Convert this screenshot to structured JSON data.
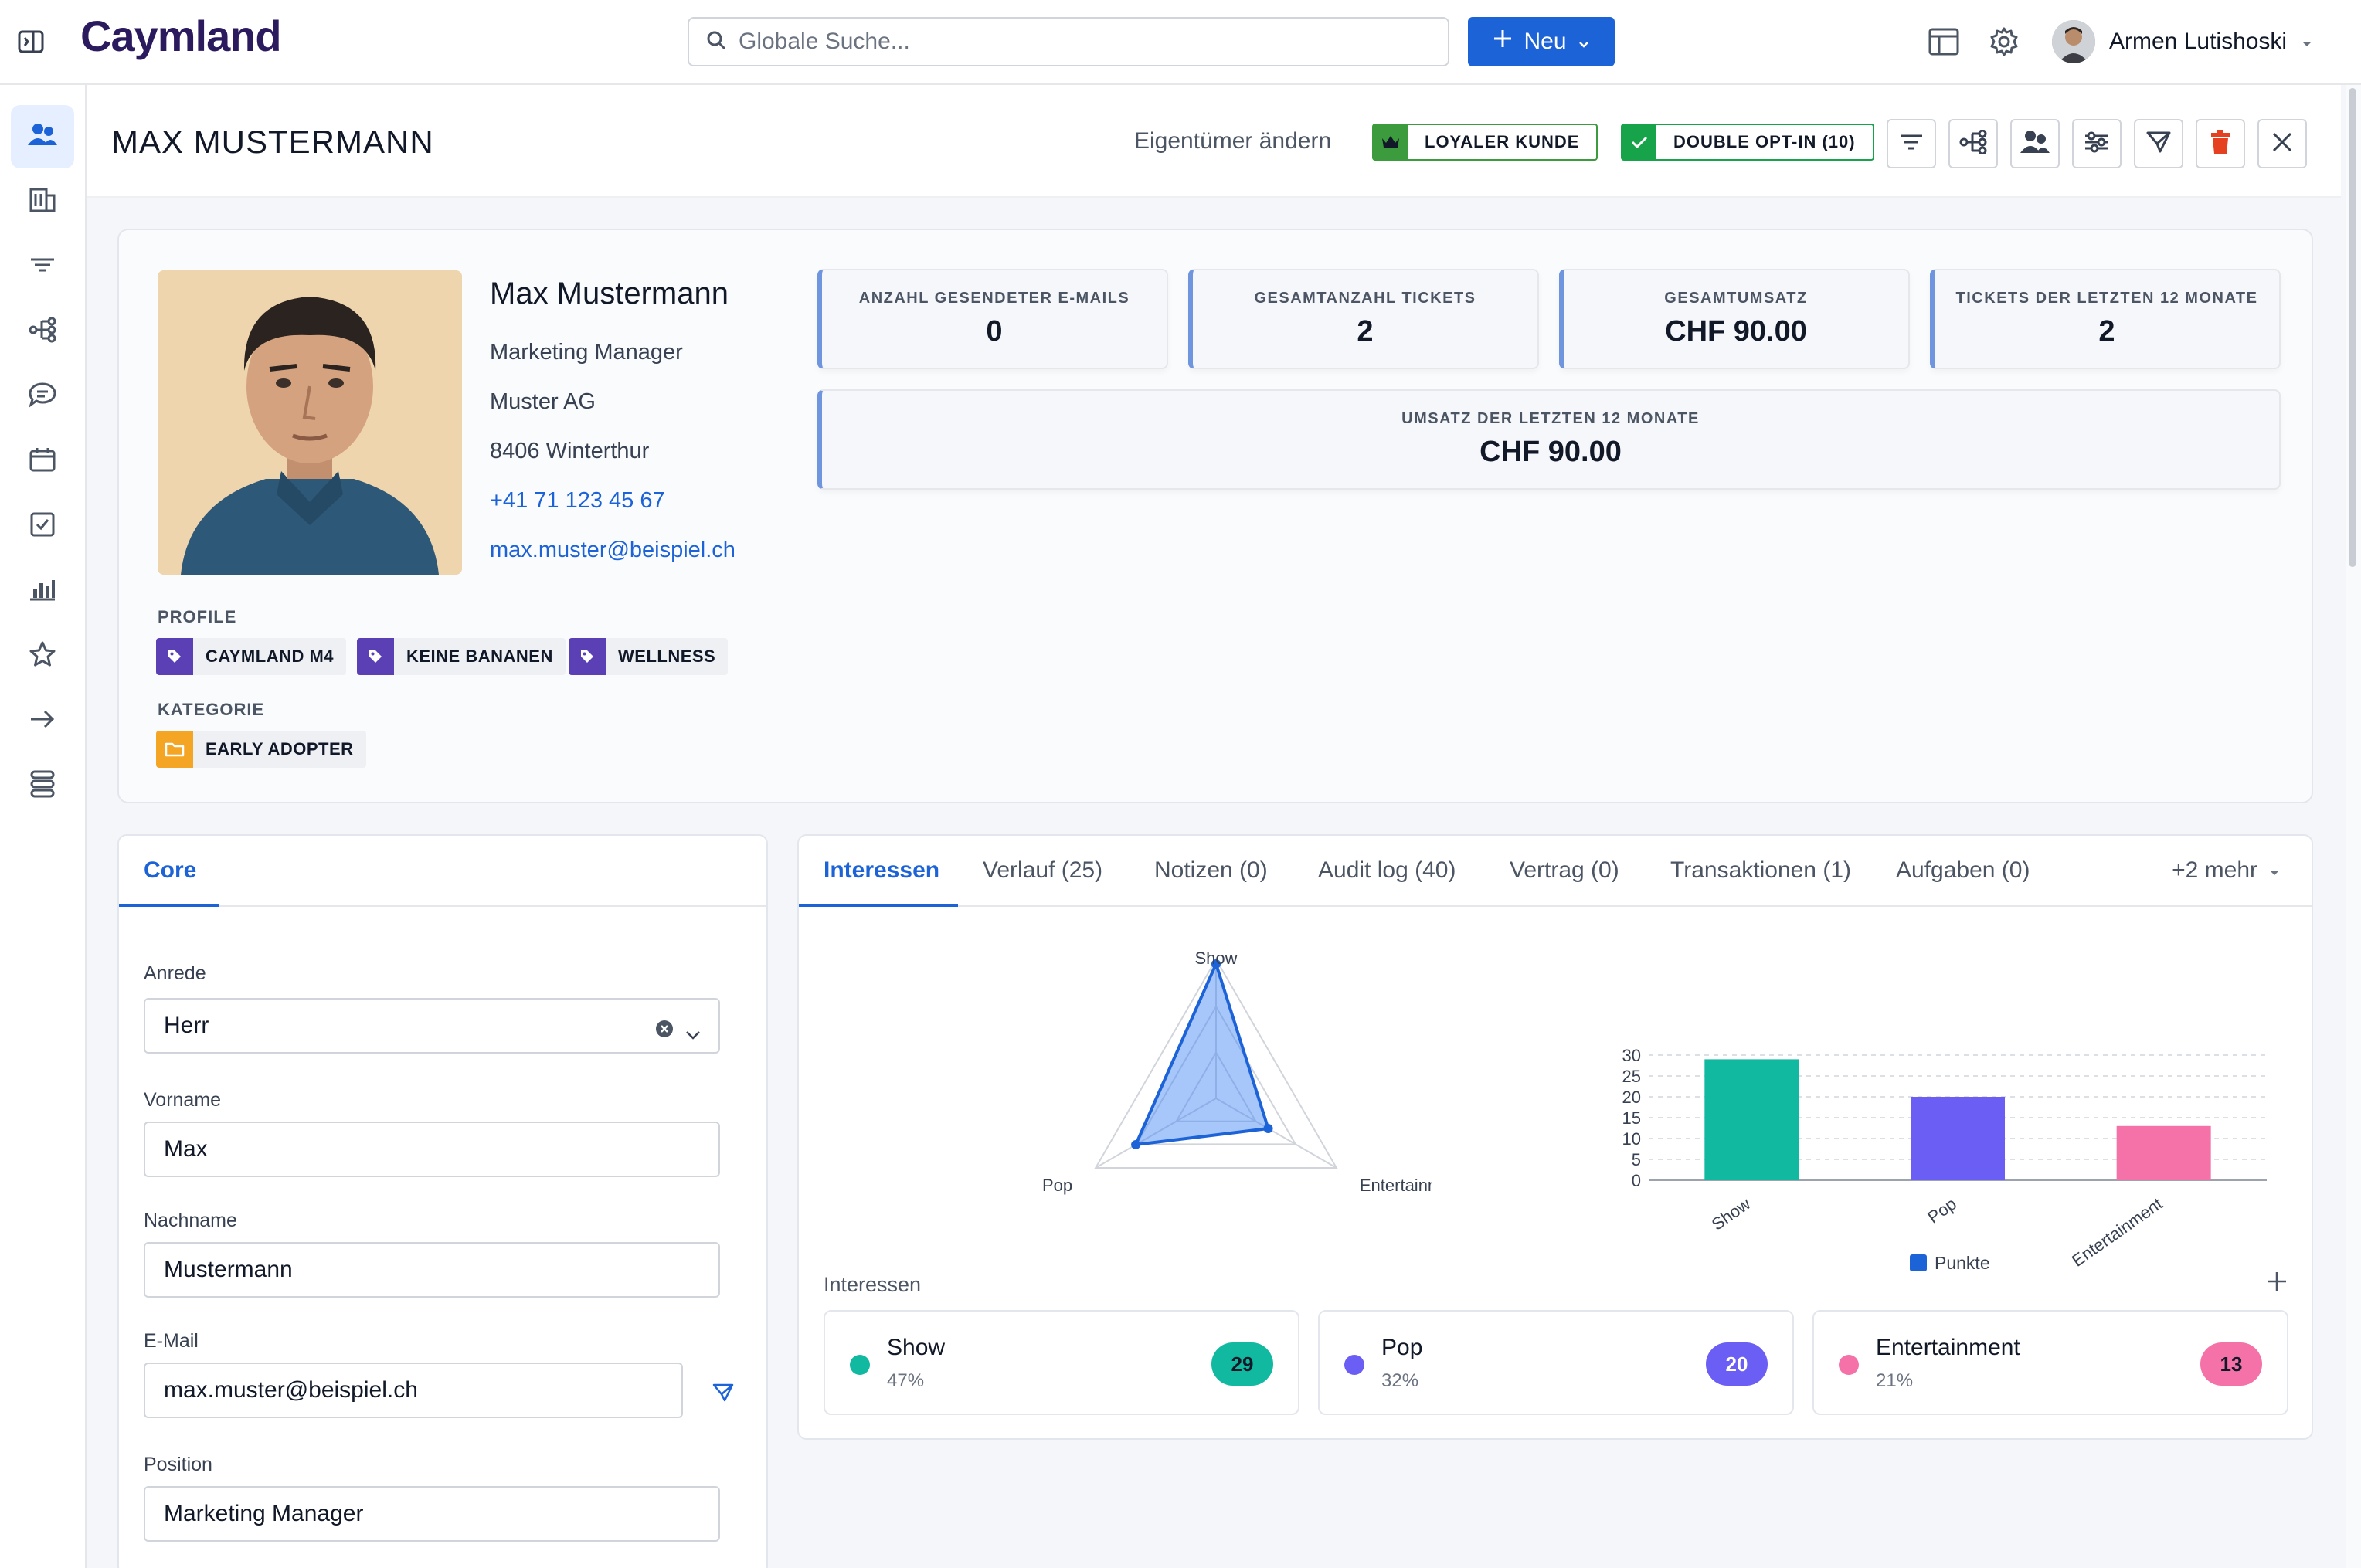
{
  "app": {
    "logo": "Caymland",
    "search_placeholder": "Globale Suche...",
    "new_label": "Neu",
    "user_name": "Armen Lutishoski"
  },
  "header": {
    "title": "MAX MUSTERMANN",
    "owner_link": "Eigentümer ändern",
    "badge_loyal": "LOYALER KUNDE",
    "badge_optin": "DOUBLE OPT-IN (10)"
  },
  "contact": {
    "name": "Max Mustermann",
    "position": "Marketing Manager",
    "company": "Muster AG",
    "city": "8406 Winterthur",
    "phone": "+41 71 123 45 67",
    "email": "max.muster@beispiel.ch"
  },
  "profile": {
    "label": "PROFILE",
    "tags": [
      "CAYMLAND M4",
      "KEINE BANANEN",
      "WELLNESS"
    ],
    "category_label": "KATEGORIE",
    "category": "EARLY ADOPTER"
  },
  "stats": [
    {
      "label": "ANZAHL GESENDETER E-MAILS",
      "value": "0"
    },
    {
      "label": "GESAMTANZAHL TICKETS",
      "value": "2"
    },
    {
      "label": "GESAMTUMSATZ",
      "value": "CHF 90.00"
    },
    {
      "label": "TICKETS DER LETZTEN 12 MONATE",
      "value": "2"
    },
    {
      "label": "UMSATZ DER LETZTEN 12 MONATE",
      "value": "CHF 90.00"
    }
  ],
  "core": {
    "tab": "Core",
    "fields": [
      {
        "label": "Anrede",
        "value": "Herr"
      },
      {
        "label": "Vorname",
        "value": "Max"
      },
      {
        "label": "Nachname",
        "value": "Mustermann"
      },
      {
        "label": "E-Mail",
        "value": "max.muster@beispiel.ch"
      },
      {
        "label": "Position",
        "value": "Marketing Manager"
      }
    ]
  },
  "tabs": [
    "Interessen",
    "Verlauf (25)",
    "Notizen (0)",
    "Audit log (40)",
    "Vertrag (0)",
    "Transaktionen (1)",
    "Aufgaben (0)"
  ],
  "tabs_more": "+2 mehr",
  "interests": {
    "section_label": "Interessen",
    "items": [
      {
        "name": "Show",
        "pct": "47%",
        "count": "29",
        "color": "#10b9a0"
      },
      {
        "name": "Pop",
        "pct": "32%",
        "count": "20",
        "color": "#6a5ef5"
      },
      {
        "name": "Entertainment",
        "pct": "21%",
        "count": "13",
        "color": "#f472a8"
      }
    ]
  },
  "chart_data": [
    {
      "type": "radar",
      "categories": [
        "Show",
        "Entertainment",
        "Pop"
      ],
      "values": [
        29,
        13,
        20
      ]
    },
    {
      "type": "bar",
      "categories": [
        "Show",
        "Pop",
        "Entertainment"
      ],
      "values": [
        29,
        20,
        13
      ],
      "colors": [
        "#10b9a0",
        "#6a5ef5",
        "#f472a8"
      ],
      "legend": "Punkte",
      "yticks": [
        "0",
        "5",
        "10",
        "15",
        "20",
        "25",
        "30"
      ],
      "ylim": [
        0,
        30
      ],
      "grid": true
    }
  ]
}
